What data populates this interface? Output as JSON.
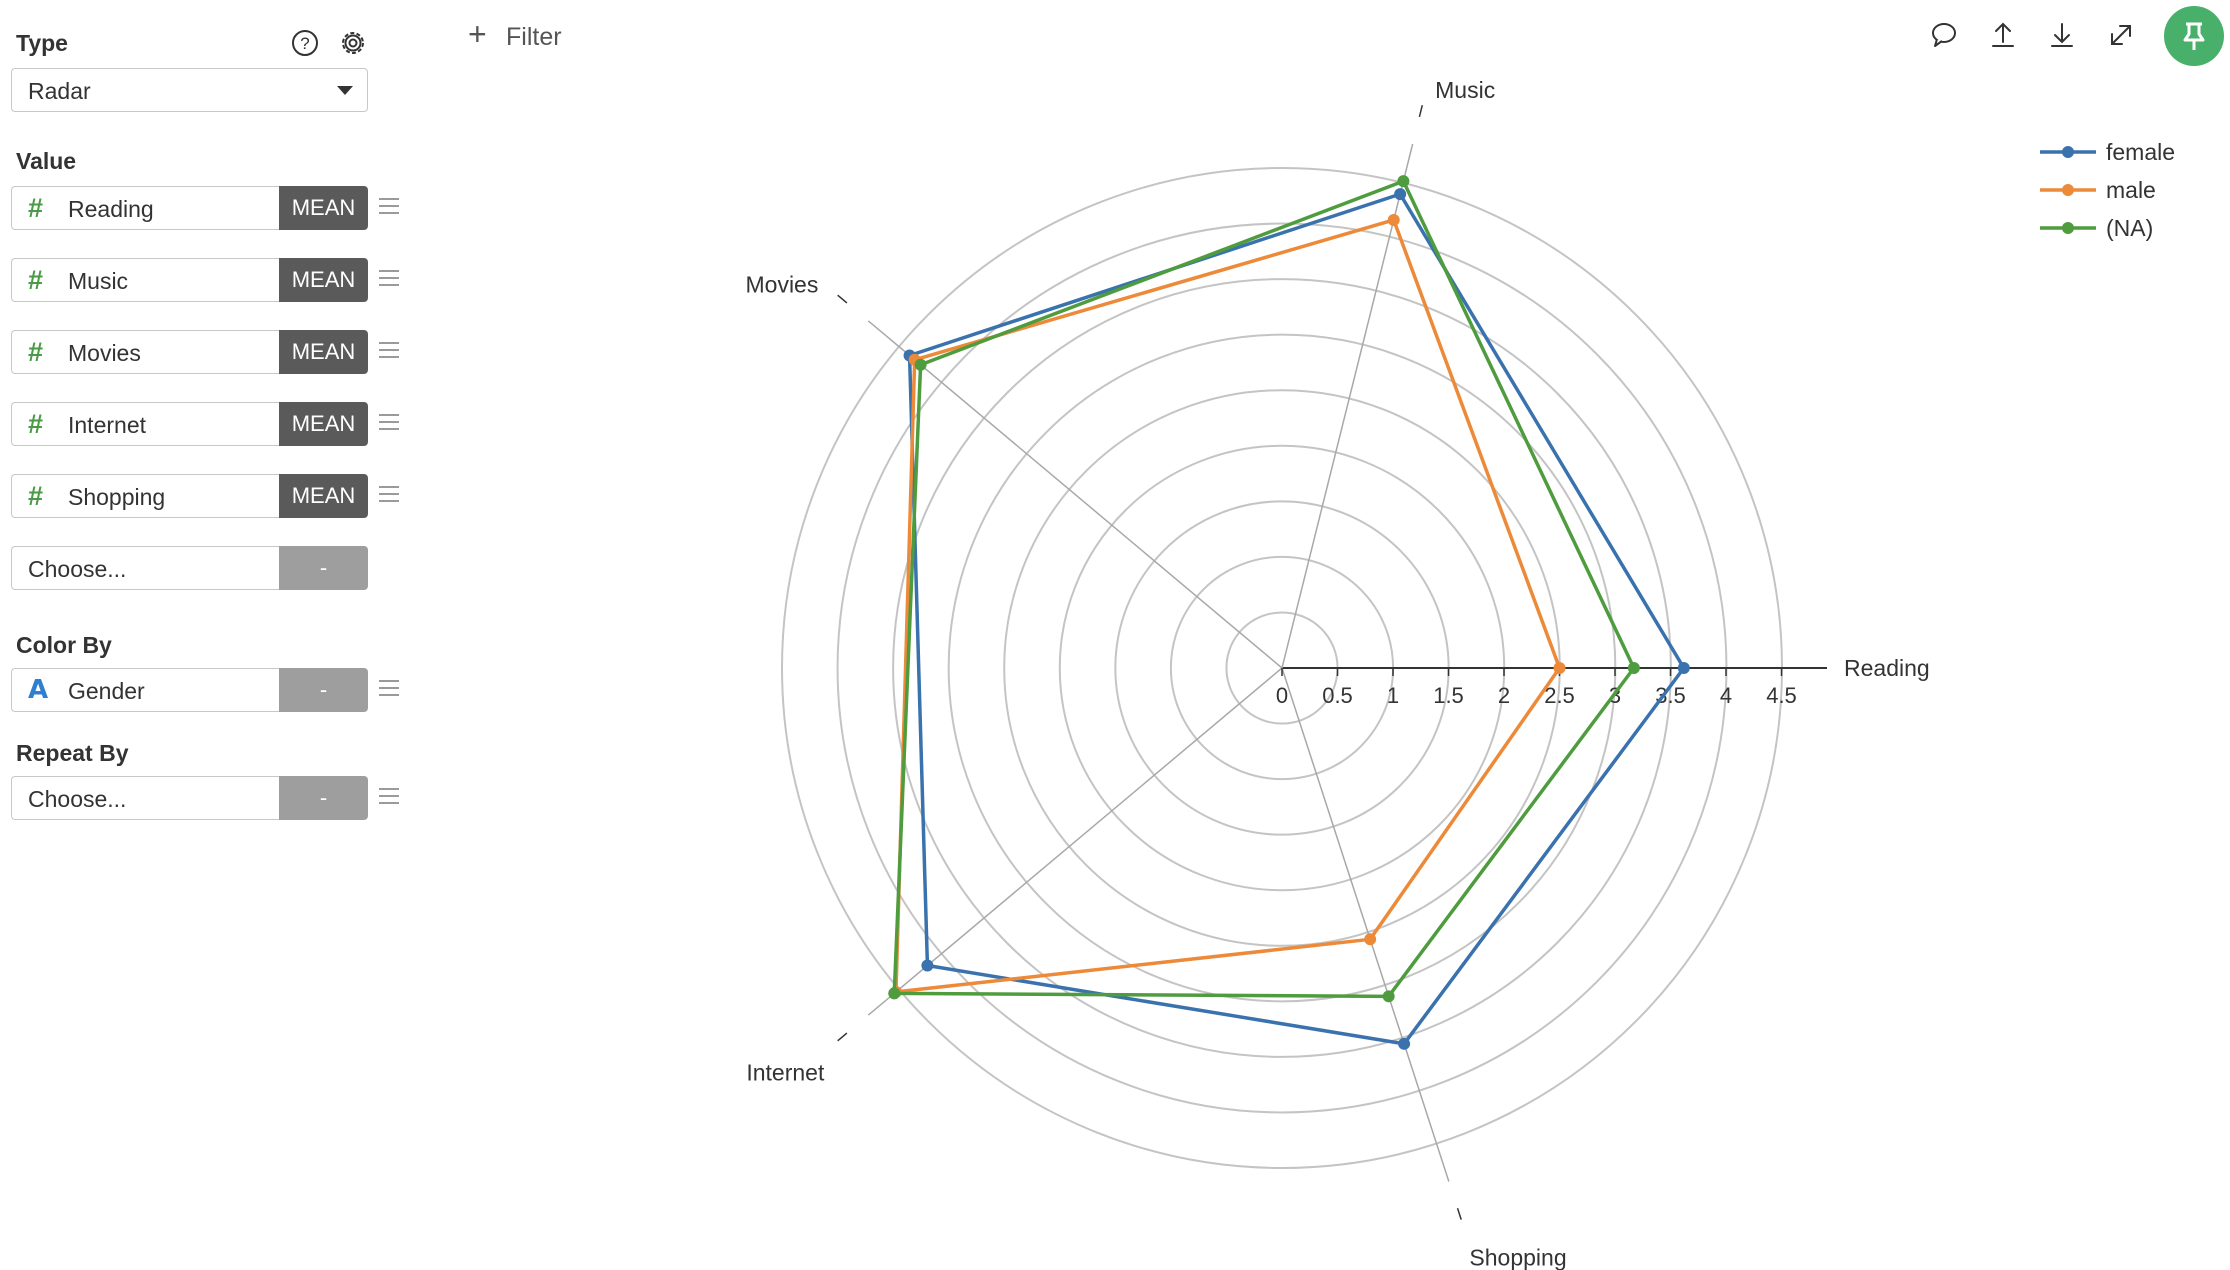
{
  "sidebar": {
    "type": {
      "heading": "Type",
      "value": "Radar"
    },
    "value": {
      "heading": "Value",
      "fields": [
        {
          "label": "Reading",
          "agg": "MEAN"
        },
        {
          "label": "Music",
          "agg": "MEAN"
        },
        {
          "label": "Movies",
          "agg": "MEAN"
        },
        {
          "label": "Internet",
          "agg": "MEAN"
        },
        {
          "label": "Shopping",
          "agg": "MEAN"
        }
      ],
      "choose": {
        "label": "Choose...",
        "agg": "-"
      }
    },
    "color_by": {
      "heading": "Color By",
      "label": "Gender",
      "agg": "-"
    },
    "repeat_by": {
      "heading": "Repeat By",
      "label": "Choose...",
      "agg": "-"
    }
  },
  "toolbar": {
    "filter_label": "Filter",
    "icons": [
      "comment-icon",
      "upload-icon",
      "download-icon",
      "expand-icon",
      "pin-icon"
    ]
  },
  "colors": {
    "female": "#3a72ad",
    "male": "#ec8a39",
    "na": "#4f9c3e",
    "pin": "#48b06b"
  },
  "chart_data": {
    "type": "radar",
    "axes": [
      "Reading",
      "Music",
      "Movies",
      "Internet",
      "Shopping"
    ],
    "radial_ticks": [
      "0",
      "0.5",
      "1",
      "1.5",
      "2",
      "2.5",
      "3",
      "3.5",
      "4",
      "4.5"
    ],
    "rlim": [
      0,
      4.5
    ],
    "grid": true,
    "legend_position": "top-right",
    "series": [
      {
        "name": "female",
        "color": "#3a72ad",
        "values": [
          3.62,
          4.4,
          4.38,
          4.17,
          3.56
        ]
      },
      {
        "name": "male",
        "color": "#ec8a39",
        "values": [
          2.5,
          4.16,
          4.32,
          4.54,
          2.57
        ]
      },
      {
        "name": "(NA)",
        "color": "#4f9c3e",
        "values": [
          3.17,
          4.52,
          4.25,
          4.56,
          3.11
        ]
      }
    ]
  }
}
